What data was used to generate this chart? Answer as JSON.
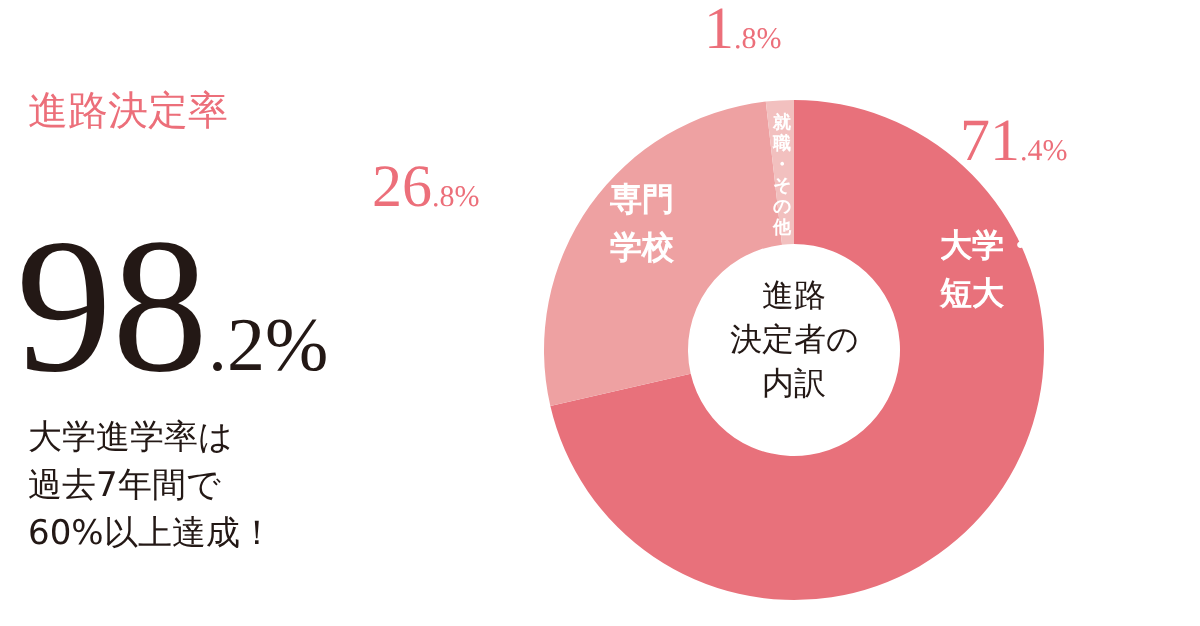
{
  "chart_data": {
    "type": "donut",
    "title": "進路決定率",
    "categories": [
      "大学・短大",
      "専門学校",
      "就職・その他"
    ],
    "values": [
      71.4,
      26.8,
      1.8
    ],
    "colors": [
      "#e8717b",
      "#eea1a2",
      "#f2c0bf"
    ],
    "value_labels": [
      "71.4%",
      "26.8%",
      "1.8%"
    ],
    "annotations": [
      "98.2%",
      "大学進学率は過去7年間で60%以上達成！",
      "進路決定者の内訳"
    ]
  }
}
